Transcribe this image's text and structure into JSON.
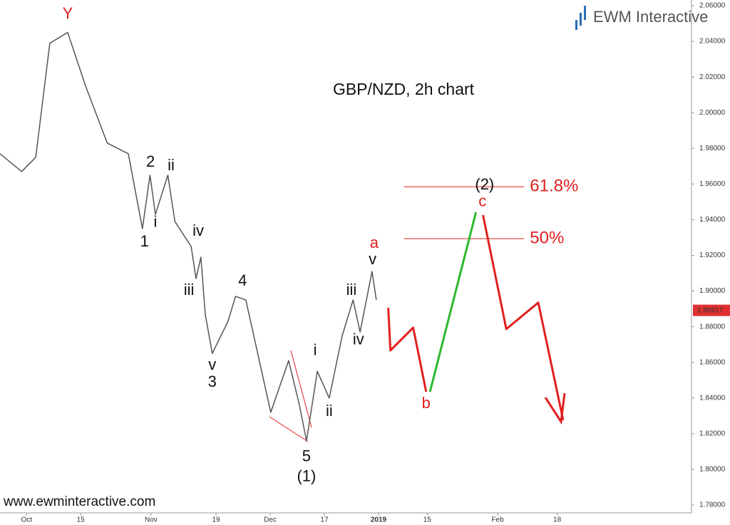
{
  "chart_data": {
    "type": "line",
    "title": "GBP/NZD, 2h chart",
    "watermark": "EWM Interactive",
    "footer": "www.ewminteractive.com",
    "xlim": [
      -4.9,
      122.8
    ],
    "xticks": [
      {
        "value": 0,
        "label": "Oct"
      },
      {
        "value": 10,
        "label": "15"
      },
      {
        "value": 23,
        "label": "Nov"
      },
      {
        "value": 35,
        "label": "19"
      },
      {
        "value": 45,
        "label": "Dec"
      },
      {
        "value": 55,
        "label": "17"
      },
      {
        "value": 65,
        "label": "2019"
      },
      {
        "value": 74,
        "label": "15"
      },
      {
        "value": 87,
        "label": "Feb"
      },
      {
        "value": 98,
        "label": "18"
      }
    ],
    "ylim": [
      1.7756,
      2.0632
    ],
    "yticks": [
      {
        "value": 1.78,
        "label": "1.78000"
      },
      {
        "value": 1.8,
        "label": "1.80000"
      },
      {
        "value": 1.82,
        "label": "1.82000"
      },
      {
        "value": 1.84,
        "label": "1.84000"
      },
      {
        "value": 1.86,
        "label": "1.86000"
      },
      {
        "value": 1.88,
        "label": "1.88000"
      },
      {
        "value": 1.9,
        "label": "1.90000"
      },
      {
        "value": 1.92,
        "label": "1.92000"
      },
      {
        "value": 1.94,
        "label": "1.94000"
      },
      {
        "value": 1.96,
        "label": "1.96000"
      },
      {
        "value": 1.98,
        "label": "1.98000"
      },
      {
        "value": 2.0,
        "label": "2.00000"
      },
      {
        "value": 2.02,
        "label": "2.02000"
      },
      {
        "value": 2.04,
        "label": "2.04000"
      },
      {
        "value": 2.06,
        "label": "2.06000"
      }
    ],
    "price": {
      "color": "#555555",
      "x": [
        -4.9,
        -0.9,
        1.7,
        4.3,
        7.6,
        10.9,
        14.9,
        18.8,
        21.4,
        22.8,
        23.8,
        26.1,
        27.4,
        30.4,
        31.3,
        32.2,
        33.0,
        34.3,
        37.2,
        38.6,
        40.5,
        45.1,
        48.4,
        50.4,
        51.7,
        53.7,
        55.9,
        58.3,
        60.3,
        61.6,
        63.8,
        64.6
      ],
      "values": [
        1.977,
        1.967,
        1.975,
        2.039,
        2.045,
        2.015,
        1.983,
        1.977,
        1.935,
        1.965,
        1.943,
        1.965,
        1.939,
        1.925,
        1.907,
        1.919,
        1.887,
        1.865,
        1.883,
        1.897,
        1.895,
        1.832,
        1.861,
        1.836,
        1.816,
        1.855,
        1.84,
        1.875,
        1.895,
        1.877,
        1.911,
        1.895
      ]
    },
    "projections": [
      {
        "color": "#e02020",
        "x": [
          66.8,
          67.2,
          71.4,
          73.8
        ],
        "values": [
          1.8906,
          1.8667,
          1.8795,
          1.8435
        ]
      },
      {
        "color": "#2eb82e",
        "x": [
          74.5,
          83.0
        ],
        "values": [
          1.8435,
          1.9442
        ]
      },
      {
        "color": "#e02020",
        "x": [
          84.3,
          88.6,
          94.5,
          99.1
        ],
        "values": [
          1.9426,
          1.8787,
          1.8935,
          1.8276
        ]
      }
    ],
    "levels": [
      {
        "label": "61.8%",
        "value": 1.9585,
        "x": [
          69.7,
          91.9
        ],
        "color": "#e02020"
      },
      {
        "label": "50%",
        "value": 1.9294,
        "x": [
          69.7,
          91.9
        ],
        "color": "#e02020"
      }
    ],
    "last_price": {
      "value": 1.88917,
      "label": "1.88917",
      "color": "#e03030"
    },
    "annotations": [
      {
        "text": "Y",
        "x": 7.6,
        "y": 2.0552,
        "color": "#e02020"
      },
      {
        "text": "2",
        "x": 22.9,
        "y": 1.9721,
        "color": "#111111"
      },
      {
        "text": "ii",
        "x": 26.7,
        "y": 1.9701,
        "color": "#111111"
      },
      {
        "text": "i",
        "x": 23.8,
        "y": 1.9382,
        "color": "#111111"
      },
      {
        "text": "1",
        "x": 21.8,
        "y": 1.9274,
        "color": "#111111"
      },
      {
        "text": "iv",
        "x": 31.7,
        "y": 1.9334,
        "color": "#111111"
      },
      {
        "text": "iii",
        "x": 30.0,
        "y": 1.9002,
        "color": "#111111"
      },
      {
        "text": "4",
        "x": 39.9,
        "y": 1.9054,
        "color": "#111111"
      },
      {
        "text": "v",
        "x": 34.3,
        "y": 1.8583,
        "color": "#111111"
      },
      {
        "text": "3",
        "x": 34.3,
        "y": 1.8487,
        "color": "#111111"
      },
      {
        "text": "i",
        "x": 53.3,
        "y": 1.8663,
        "color": "#111111"
      },
      {
        "text": "ii",
        "x": 55.9,
        "y": 1.8323,
        "color": "#111111"
      },
      {
        "text": "iii",
        "x": 60.0,
        "y": 1.9002,
        "color": "#111111"
      },
      {
        "text": "iv",
        "x": 61.3,
        "y": 1.8723,
        "color": "#111111"
      },
      {
        "text": "v",
        "x": 63.9,
        "y": 1.9174,
        "color": "#111111"
      },
      {
        "text": "a",
        "x": 64.2,
        "y": 1.9266,
        "color": "#e02020"
      },
      {
        "text": "5",
        "x": 51.7,
        "y": 1.8068,
        "color": "#111111"
      },
      {
        "text": "(1)",
        "x": 51.7,
        "y": 1.7956,
        "color": "#111111"
      },
      {
        "text": "b",
        "x": 73.8,
        "y": 1.8367,
        "color": "#e02020"
      },
      {
        "text": "c",
        "x": 84.2,
        "y": 1.9498,
        "color": "#e02020"
      },
      {
        "text": "(2)",
        "x": 84.6,
        "y": 1.9593,
        "color": "#111111"
      }
    ]
  }
}
